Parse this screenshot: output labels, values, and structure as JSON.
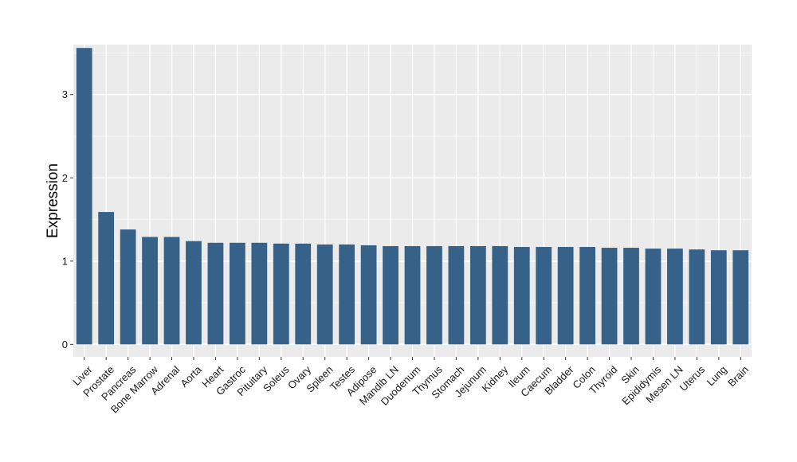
{
  "chart_data": {
    "type": "bar",
    "title": "",
    "xlabel": "",
    "ylabel": "Expression",
    "ylim": [
      -0.15,
      3.6
    ],
    "yticks": [
      0,
      1,
      2,
      3
    ],
    "grid": true,
    "legend": "none",
    "colors": {
      "bar": "#366289",
      "panel": "#ebebeb",
      "grid_major": "#ffffff",
      "grid_minor": "#f5f5f5"
    },
    "categories": [
      "Liver",
      "Prostate",
      "Pancreas",
      "Bone Marrow",
      "Adrenal",
      "Aorta",
      "Heart",
      "Gastroc",
      "Pituitary",
      "Soleus",
      "Ovary",
      "Spleen",
      "Testes",
      "Adipose",
      "Mandib LN",
      "Duodenum",
      "Thymus",
      "Stomach",
      "Jejunum",
      "Kidney",
      "Ileum",
      "Caecum",
      "Bladder",
      "Colon",
      "Thyroid",
      "Skin",
      "Epididymis",
      "Mesen LN",
      "Uterus",
      "Lung",
      "Brain"
    ],
    "values": [
      3.56,
      1.59,
      1.38,
      1.29,
      1.29,
      1.24,
      1.22,
      1.22,
      1.22,
      1.21,
      1.21,
      1.2,
      1.2,
      1.19,
      1.18,
      1.18,
      1.18,
      1.18,
      1.18,
      1.18,
      1.17,
      1.17,
      1.17,
      1.17,
      1.16,
      1.16,
      1.15,
      1.15,
      1.14,
      1.13,
      1.13
    ]
  }
}
